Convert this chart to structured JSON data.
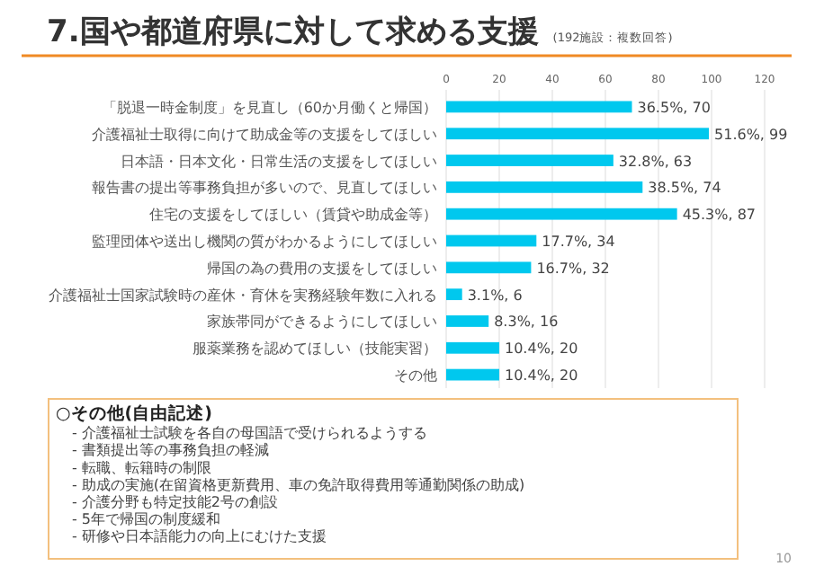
{
  "chart_data": {
    "type": "bar",
    "orientation": "horizontal",
    "title": "7.国や都道府県に対して求める支援",
    "subtitle": "(192施設：複数回答)",
    "categories": [
      "「脱退一時金制度」を見直し（60か月働くと帰国）",
      "介護福祉士取得に向けて助成金等の支援をしてほしい",
      "日本語・日本文化・日常生活の支援をしてほしい",
      "報告書の提出等事務負担が多いので、見直してほしい",
      "住宅の支援をしてほしい（賃貸や助成金等）",
      "監理団体や送出し機関の質がわかるようにしてほしい",
      "帰国の為の費用の支援をしてほしい",
      "介護福祉士国家試験時の産休・育休を実務経験年数に入れる",
      "家族帯同ができるようにしてほしい",
      "服薬業務を認めてほしい（技能実習）",
      "その他"
    ],
    "values": [
      70,
      99,
      63,
      74,
      87,
      34,
      32,
      6,
      16,
      20,
      20
    ],
    "value_labels": [
      "36.5%, 70",
      "51.6%, 99",
      "32.8%, 63",
      "38.5%, 74",
      "45.3%, 87",
      "17.7%, 34",
      "16.7%, 32",
      "3.1%, 6",
      "8.3%, 16",
      "10.4%, 20",
      "10.4%, 20"
    ],
    "color": "#00c8ee",
    "xlim": [
      0,
      120
    ],
    "xticks": [
      0,
      20,
      40,
      60,
      80,
      100,
      120
    ],
    "grid": "x",
    "annotations": [
      "○その他(自由記述)",
      "- 介護福祉士試験を各自の母国語で受けられるようする",
      "- 書類提出等の事務負担の軽減",
      "- 転職、転籍時の制限",
      "- 助成の実施(在留資格更新費用、車の免許取得費用等通勤関係の助成)",
      "- 介護分野も特定技能2号の創設",
      "- 5年で帰国の制度緩和",
      "- 研修や日本語能力の向上にむけた支援",
      "10"
    ]
  }
}
